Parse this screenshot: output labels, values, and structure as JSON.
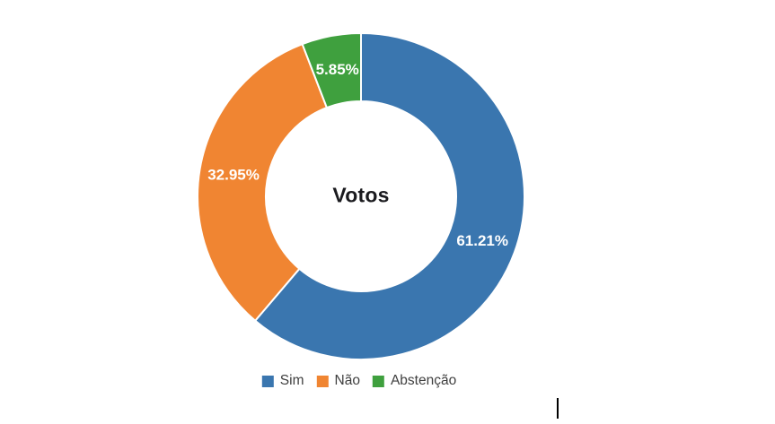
{
  "chart_data": {
    "type": "pie",
    "subtype": "donut",
    "title": "Votos",
    "center_label": "Votos",
    "start_angle_deg": 0,
    "direction": "clockwise",
    "legend_position": "bottom",
    "series": [
      {
        "name": "Sim",
        "value": 61.21,
        "label": "61.21%",
        "color": "#3A76AF"
      },
      {
        "name": "Não",
        "value": 32.95,
        "label": "32.95%",
        "color": "#F08532"
      },
      {
        "name": "Abstenção",
        "value": 5.85,
        "label": "5.85%",
        "color": "#3FA03E"
      }
    ],
    "colors": {
      "slice_label_text": "#FFFFFF",
      "center_title_text": "#1A1A1E",
      "legend_text": "#3F3F3F",
      "background": "#FFFFFF",
      "slice_gap": "#FFFFFF"
    }
  }
}
